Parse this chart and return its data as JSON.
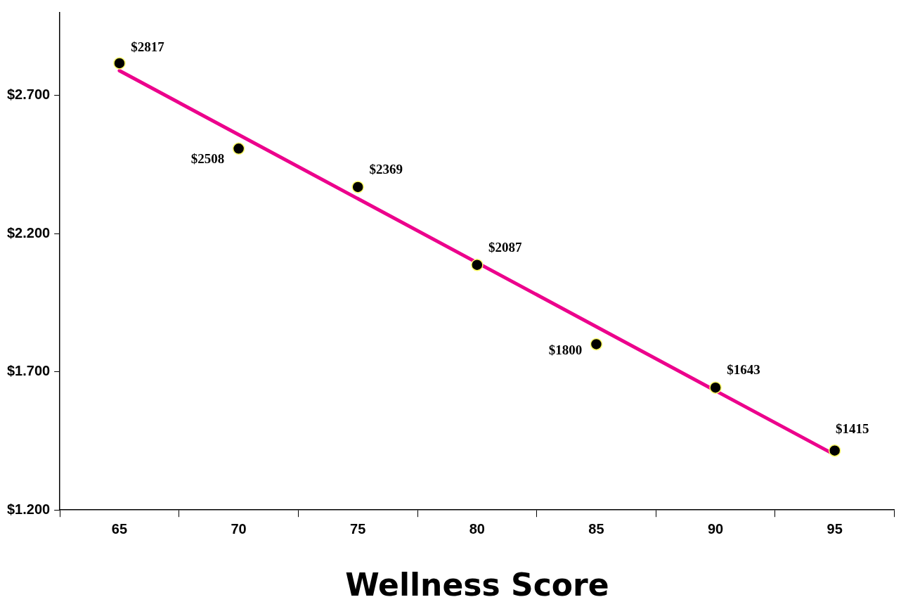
{
  "chart_data": {
    "type": "scatter",
    "xlabel": "Wellness Score",
    "categories": [
      "65",
      "70",
      "75",
      "80",
      "85",
      "90",
      "95"
    ],
    "series": [
      {
        "color": "#000000",
        "marker": "circle",
        "values": [
          2817,
          2508,
          2369,
          2087,
          1800,
          1643,
          1415
        ],
        "value_labels": [
          "$2817",
          "$2508",
          "$2369",
          "$2087",
          "$1800",
          "$1643",
          "$1415"
        ]
      },
      {
        "type": "line",
        "color": "#ec008c",
        "x": [
          "65",
          "95"
        ],
        "values": [
          2790,
          1400
        ]
      }
    ],
    "ylim": [
      1200,
      3000
    ],
    "yticks": [
      {
        "value": 1200,
        "label": "$1.200"
      },
      {
        "value": 1700,
        "label": "$1.700"
      },
      {
        "value": 2200,
        "label": "$2.200"
      },
      {
        "value": 2700,
        "label": "$2.700"
      }
    ],
    "grid": false,
    "legend": false
  }
}
